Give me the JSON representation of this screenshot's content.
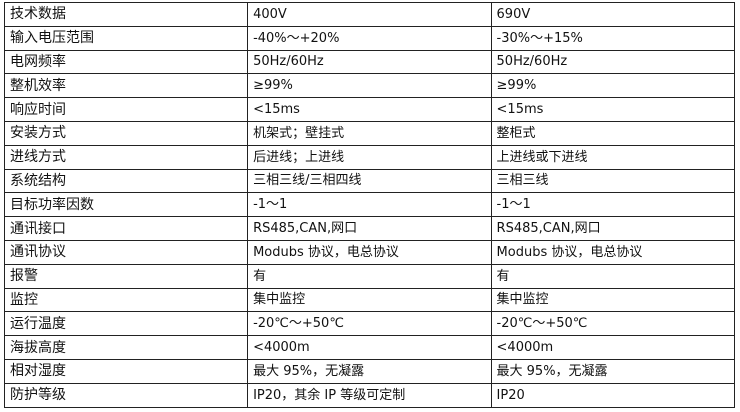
{
  "rows": [
    [
      "技术数据",
      "400V",
      "690V"
    ],
    [
      "输入电压范围",
      "-40%～+20%",
      "-30%～+15%"
    ],
    [
      "电网频率",
      "50Hz/60Hz",
      "50Hz/60Hz"
    ],
    [
      "整机效率",
      "≥99%",
      "≥99%"
    ],
    [
      "响应时间",
      "<15ms",
      "<15ms"
    ],
    [
      "安装方式",
      "机架式；壁挂式",
      "整柜式"
    ],
    [
      "进线方式",
      "后进线；上进线",
      "上进线或下进线"
    ],
    [
      "系统结构",
      "三相三线/三相四线",
      "三相三线"
    ],
    [
      "目标功率因数",
      "-1～1",
      "-1～1"
    ],
    [
      "通讯接口",
      "RS485,CAN,网口",
      "RS485,CAN,网口"
    ],
    [
      "通讯协议",
      "Modubs 协议，电总协议",
      "Modubs 协议，电总协议"
    ],
    [
      "报警",
      "有",
      "有"
    ],
    [
      "监控",
      "集中监控",
      "集中监控"
    ],
    [
      "运行温度",
      "-20℃～+50℃",
      "-20℃～+50℃"
    ],
    [
      "海拔高度",
      "<4000m",
      "<4000m"
    ],
    [
      "相对湿度",
      "最大 95%，无凝露",
      "最大 95%，无凝露"
    ],
    [
      "防护等级",
      "IP20，其余 IP 等级可定制",
      "IP20"
    ]
  ]
}
